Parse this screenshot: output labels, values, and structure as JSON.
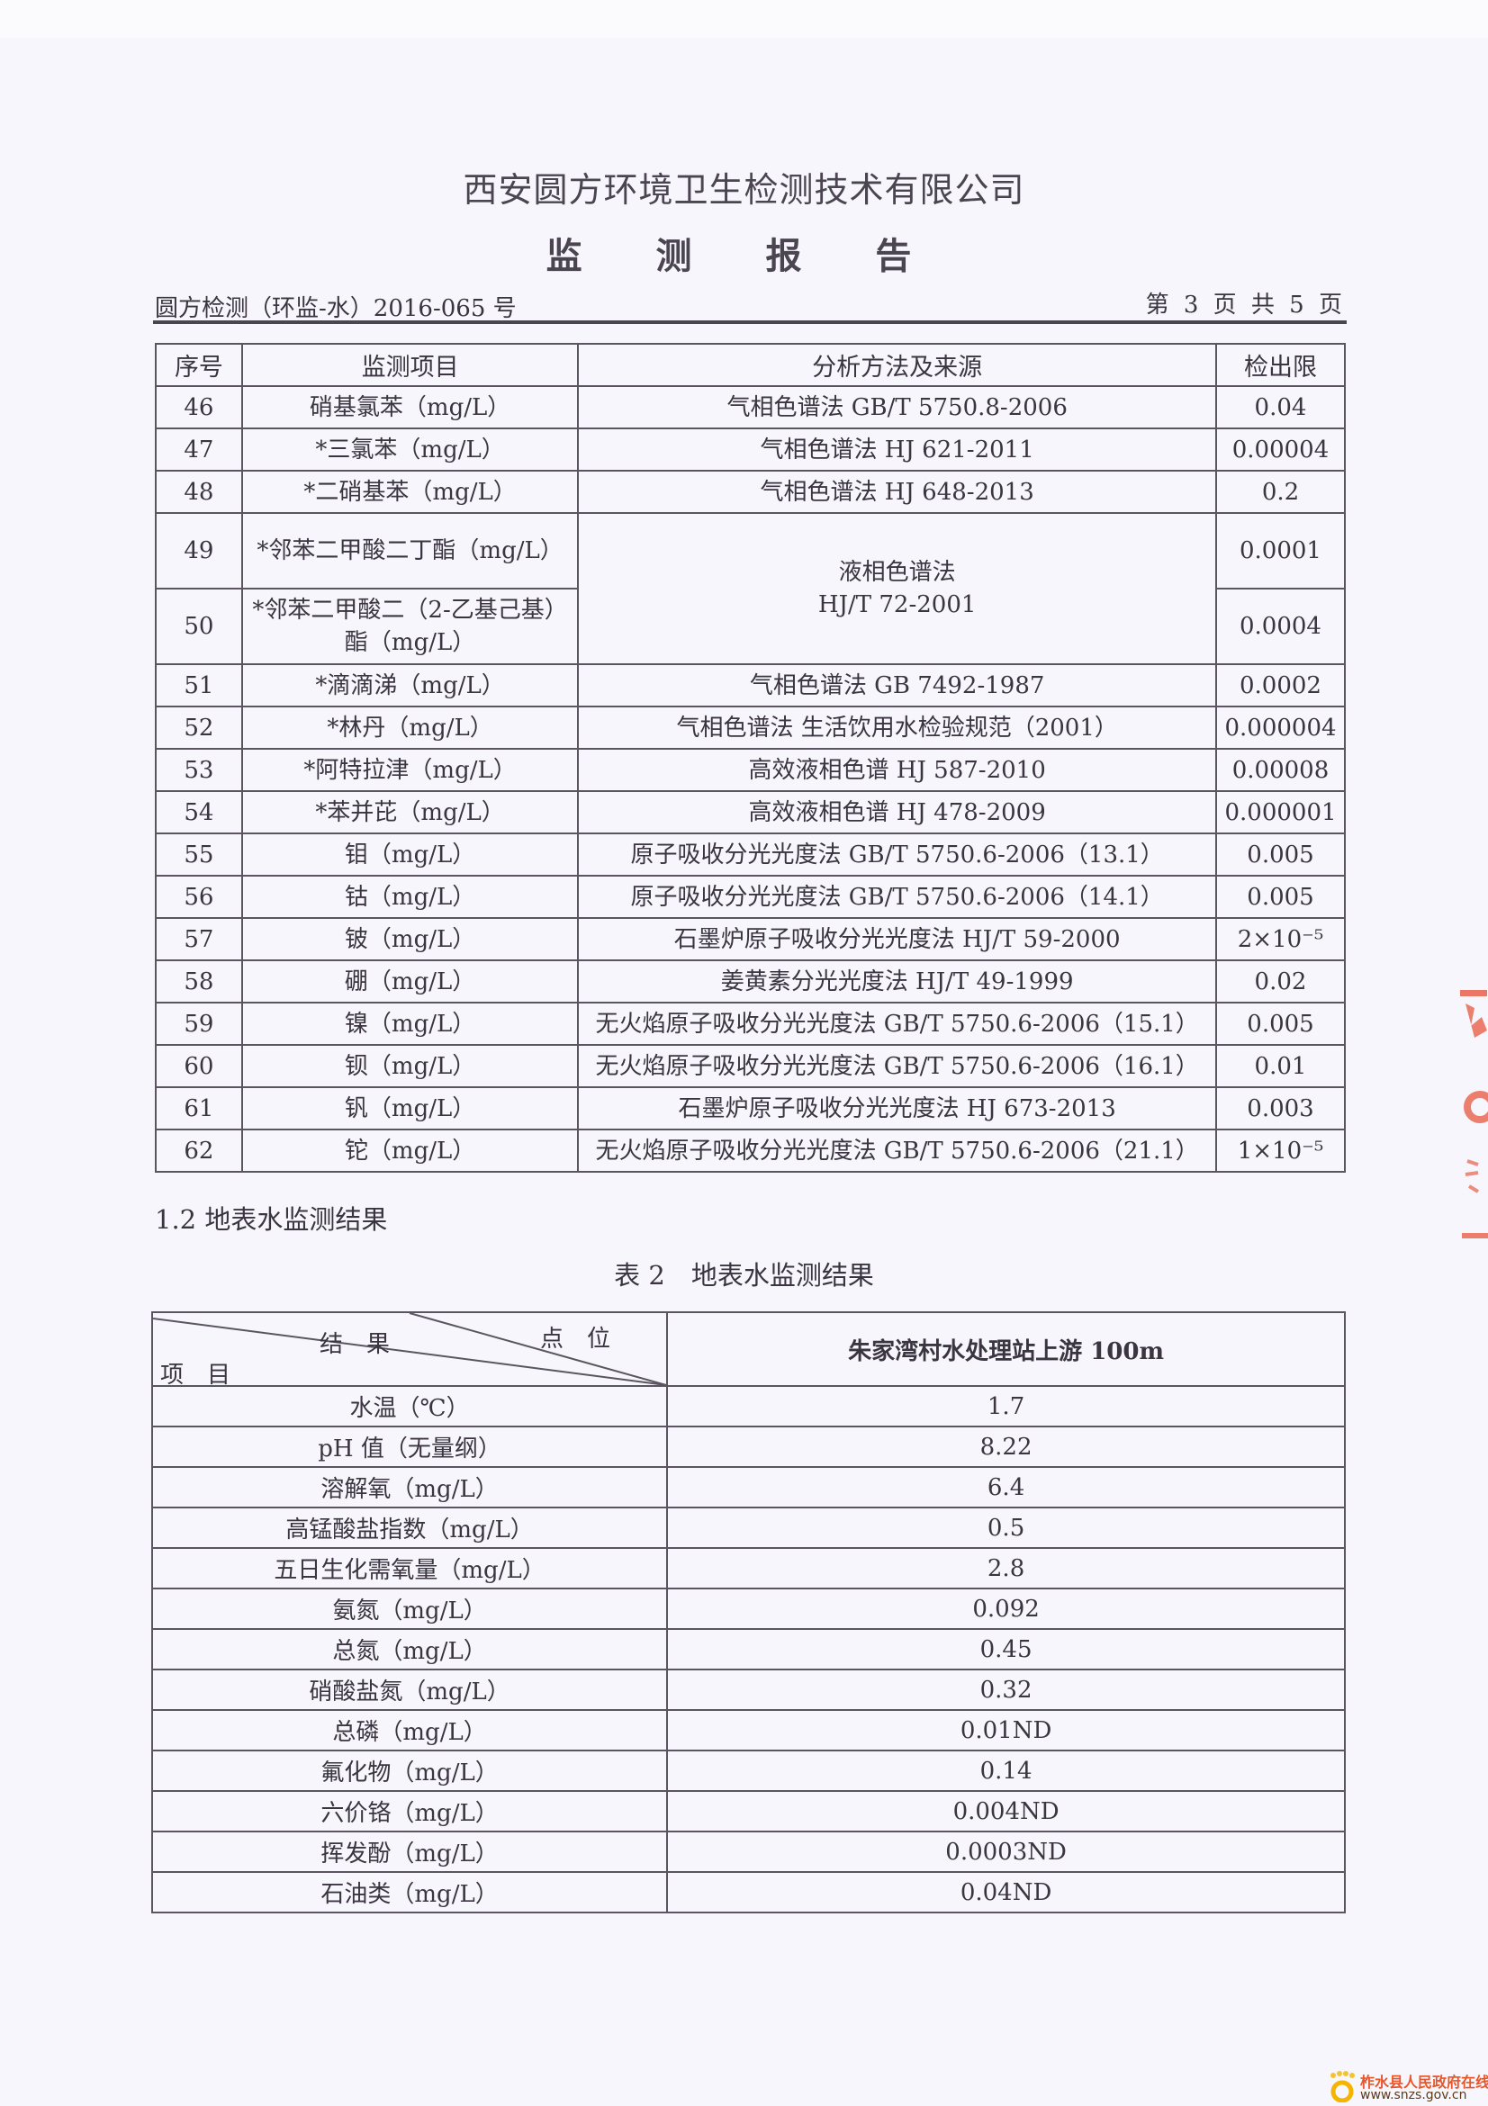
{
  "header": {
    "company": "西安圆方环境卫生检测技术有限公司",
    "title": "监 测 报 告",
    "ref": "圆方检测（环监-水）2016-065 号",
    "page": "第 3 页 共 5 页"
  },
  "table1": {
    "headers": [
      "序号",
      "监测项目",
      "分析方法及来源",
      "检出限"
    ],
    "rows": [
      {
        "no": "46",
        "item": "硝基氯苯（mg/L）",
        "method": "气相色谱法 GB/T 5750.8-2006",
        "limit": "0.04"
      },
      {
        "no": "47",
        "item": "*三氯苯（mg/L）",
        "method": "气相色谱法 HJ 621-2011",
        "limit": "0.00004"
      },
      {
        "no": "48",
        "item": "*二硝基苯（mg/L）",
        "method": "气相色谱法 HJ 648-2013",
        "limit": "0.2"
      },
      {
        "no": "49",
        "item": "*邻苯二甲酸二丁酯（mg/L）",
        "method": "液相色谱法 HJ/T 72-2001",
        "limit": "0.0001"
      },
      {
        "no": "50",
        "item": "*邻苯二甲酸二（2-乙基己基）酯（mg/L）",
        "method": "",
        "limit": "0.0004"
      },
      {
        "no": "51",
        "item": "*滴滴涕（mg/L）",
        "method": "气相色谱法 GB 7492-1987",
        "limit": "0.0002"
      },
      {
        "no": "52",
        "item": "*林丹（mg/L）",
        "method": "气相色谱法 生活饮用水检验规范（2001）",
        "limit": "0.000004"
      },
      {
        "no": "53",
        "item": "*阿特拉津（mg/L）",
        "method": "高效液相色谱 HJ 587-2010",
        "limit": "0.00008"
      },
      {
        "no": "54",
        "item": "*苯并芘（mg/L）",
        "method": "高效液相色谱 HJ 478-2009",
        "limit": "0.000001"
      },
      {
        "no": "55",
        "item": "钼（mg/L）",
        "method": "原子吸收分光光度法 GB/T 5750.6-2006（13.1）",
        "limit": "0.005"
      },
      {
        "no": "56",
        "item": "钴（mg/L）",
        "method": "原子吸收分光光度法 GB/T 5750.6-2006（14.1）",
        "limit": "0.005"
      },
      {
        "no": "57",
        "item": "铍（mg/L）",
        "method": "石墨炉原子吸收分光光度法 HJ/T 59-2000",
        "limit": "2×10⁻⁵"
      },
      {
        "no": "58",
        "item": "硼（mg/L）",
        "method": "姜黄素分光光度法 HJ/T 49-1999",
        "limit": "0.02"
      },
      {
        "no": "59",
        "item": "镍（mg/L）",
        "method": "无火焰原子吸收分光光度法 GB/T 5750.6-2006（15.1）",
        "limit": "0.005"
      },
      {
        "no": "60",
        "item": "钡（mg/L）",
        "method": "无火焰原子吸收分光光度法 GB/T 5750.6-2006（16.1）",
        "limit": "0.01"
      },
      {
        "no": "61",
        "item": "钒（mg/L）",
        "method": "石墨炉原子吸收分光光度法 HJ 673-2013",
        "limit": "0.003"
      },
      {
        "no": "62",
        "item": "铊（mg/L）",
        "method": "无火焰原子吸收分光光度法 GB/T 5750.6-2006（21.1）",
        "limit": "1×10⁻⁵"
      }
    ]
  },
  "section": "1.2 地表水监测结果",
  "caption": "表 2　地表水监测结果",
  "table2": {
    "corner": {
      "result": "结　果",
      "point": "点　位",
      "item": "项　目"
    },
    "site": "朱家湾村水处理站上游 100m",
    "rows": [
      {
        "item": "水温（℃）",
        "value": "1.7"
      },
      {
        "item": "pH 值（无量纲）",
        "value": "8.22"
      },
      {
        "item": "溶解氧（mg/L）",
        "value": "6.4"
      },
      {
        "item": "高锰酸盐指数（mg/L）",
        "value": "0.5"
      },
      {
        "item": "五日生化需氧量（mg/L）",
        "value": "2.8"
      },
      {
        "item": "氨氮（mg/L）",
        "value": "0.092"
      },
      {
        "item": "总氮（mg/L）",
        "value": "0.45"
      },
      {
        "item": "硝酸盐氮（mg/L）",
        "value": "0.32"
      },
      {
        "item": "总磷（mg/L）",
        "value": "0.01ND"
      },
      {
        "item": "氟化物（mg/L）",
        "value": "0.14"
      },
      {
        "item": "六价铬（mg/L）",
        "value": "0.004ND"
      },
      {
        "item": "挥发酚（mg/L）",
        "value": "0.0003ND"
      },
      {
        "item": "石油类（mg/L）",
        "value": "0.04ND"
      }
    ]
  },
  "watermark": {
    "name": "柞水县人民政府在线",
    "url": "www.snzs.gov.cn"
  },
  "colors": {
    "stamp": "#e8604a",
    "ink": "#3a3540"
  }
}
